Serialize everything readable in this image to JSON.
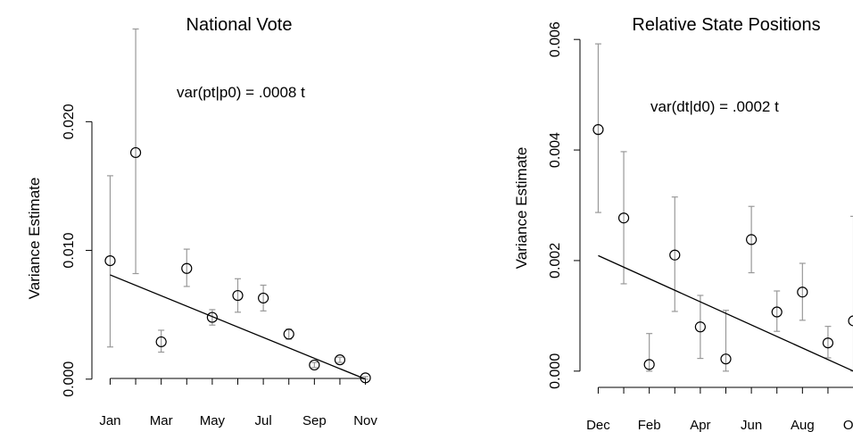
{
  "chart_data": [
    {
      "type": "scatter",
      "title": "National Vote",
      "ylabel": "Variance Estimate",
      "xlabel": "",
      "annotation": "var(pt|p0) = .0008 t",
      "ylim": [
        -0.0005,
        0.0255
      ],
      "yticks": [
        0.0,
        0.01,
        0.02
      ],
      "ytick_labels": [
        "0.000",
        "0.010",
        "0.020"
      ],
      "xlim": [
        0.6,
        11.4
      ],
      "xticks": [
        1,
        2,
        3,
        4,
        5,
        6,
        7,
        8,
        9,
        10,
        11
      ],
      "xtick_labels": [
        {
          "x": 1,
          "label": "Jan"
        },
        {
          "x": 3,
          "label": "Mar"
        },
        {
          "x": 5,
          "label": "May"
        },
        {
          "x": 7,
          "label": "Jul"
        },
        {
          "x": 9,
          "label": "Sep"
        },
        {
          "x": 11,
          "label": "Nov"
        }
      ],
      "points": [
        {
          "x": 1,
          "y": 0.0092,
          "lo": 0.0025,
          "hi": 0.0158
        },
        {
          "x": 2,
          "y": 0.0176,
          "lo": 0.0082,
          "hi": 0.0272
        },
        {
          "x": 3,
          "y": 0.0029,
          "lo": 0.0021,
          "hi": 0.0038
        },
        {
          "x": 4,
          "y": 0.0086,
          "lo": 0.0072,
          "hi": 0.0101
        },
        {
          "x": 5,
          "y": 0.0048,
          "lo": 0.0042,
          "hi": 0.0054
        },
        {
          "x": 6,
          "y": 0.0065,
          "lo": 0.0052,
          "hi": 0.0078
        },
        {
          "x": 7,
          "y": 0.0063,
          "lo": 0.0053,
          "hi": 0.0073
        },
        {
          "x": 8,
          "y": 0.0035,
          "lo": 0.0031,
          "hi": 0.0039
        },
        {
          "x": 9,
          "y": 0.0011,
          "lo": 0.0009,
          "hi": 0.0013
        },
        {
          "x": 10,
          "y": 0.0015,
          "lo": 0.0013,
          "hi": 0.0017
        },
        {
          "x": 11,
          "y": 0.0001,
          "lo": 0.0,
          "hi": 0.0002
        }
      ],
      "fit_line": [
        {
          "x": 1,
          "y": 0.0081
        },
        {
          "x": 11,
          "y": 0.0
        }
      ],
      "colors": {
        "points": "#000000",
        "error_bars": "#999999",
        "fit_line": "#000000"
      }
    },
    {
      "type": "scatter",
      "title": "Relative State Positions",
      "ylabel": "Variance Estimate",
      "xlabel": "",
      "annotation": "var(dt|d0) = .0002 t",
      "ylim": [
        -0.0001,
        0.0061
      ],
      "yticks": [
        0.0,
        0.002,
        0.004,
        0.006
      ],
      "ytick_labels": [
        "0.000",
        "0.002",
        "0.004",
        "0.006"
      ],
      "xlim": [
        0.6,
        11.4
      ],
      "xticks": [
        1,
        2,
        3,
        4,
        5,
        6,
        7,
        8,
        9,
        10,
        11
      ],
      "xtick_labels": [
        {
          "x": 1,
          "label": "Dec"
        },
        {
          "x": 3,
          "label": "Feb"
        },
        {
          "x": 5,
          "label": "Apr"
        },
        {
          "x": 7,
          "label": "Jun"
        },
        {
          "x": 9,
          "label": "Aug"
        },
        {
          "x": 11,
          "label": "Oct"
        }
      ],
      "points": [
        {
          "x": 1,
          "y": 0.00437,
          "lo": 0.00287,
          "hi": 0.00592
        },
        {
          "x": 2,
          "y": 0.00277,
          "lo": 0.00158,
          "hi": 0.00397
        },
        {
          "x": 3,
          "y": 0.00012,
          "lo": 0.0,
          "hi": 0.00068
        },
        {
          "x": 4,
          "y": 0.0021,
          "lo": 0.00108,
          "hi": 0.00315
        },
        {
          "x": 5,
          "y": 0.0008,
          "lo": 0.00023,
          "hi": 0.00137
        },
        {
          "x": 6,
          "y": 0.00022,
          "lo": 0.0,
          "hi": 0.0011
        },
        {
          "x": 7,
          "y": 0.00238,
          "lo": 0.00178,
          "hi": 0.00298
        },
        {
          "x": 8,
          "y": 0.00107,
          "lo": 0.00072,
          "hi": 0.00145
        },
        {
          "x": 9,
          "y": 0.00143,
          "lo": 0.00092,
          "hi": 0.00195
        },
        {
          "x": 10,
          "y": 0.00051,
          "lo": 0.00024,
          "hi": 0.00081
        },
        {
          "x": 11,
          "y": 0.00091,
          "lo": 0.0,
          "hi": 0.0028
        }
      ],
      "fit_line": [
        {
          "x": 1,
          "y": 0.00209
        },
        {
          "x": 11,
          "y": 0.0
        }
      ],
      "colors": {
        "points": "#000000",
        "error_bars": "#999999",
        "fit_line": "#000000"
      }
    }
  ]
}
